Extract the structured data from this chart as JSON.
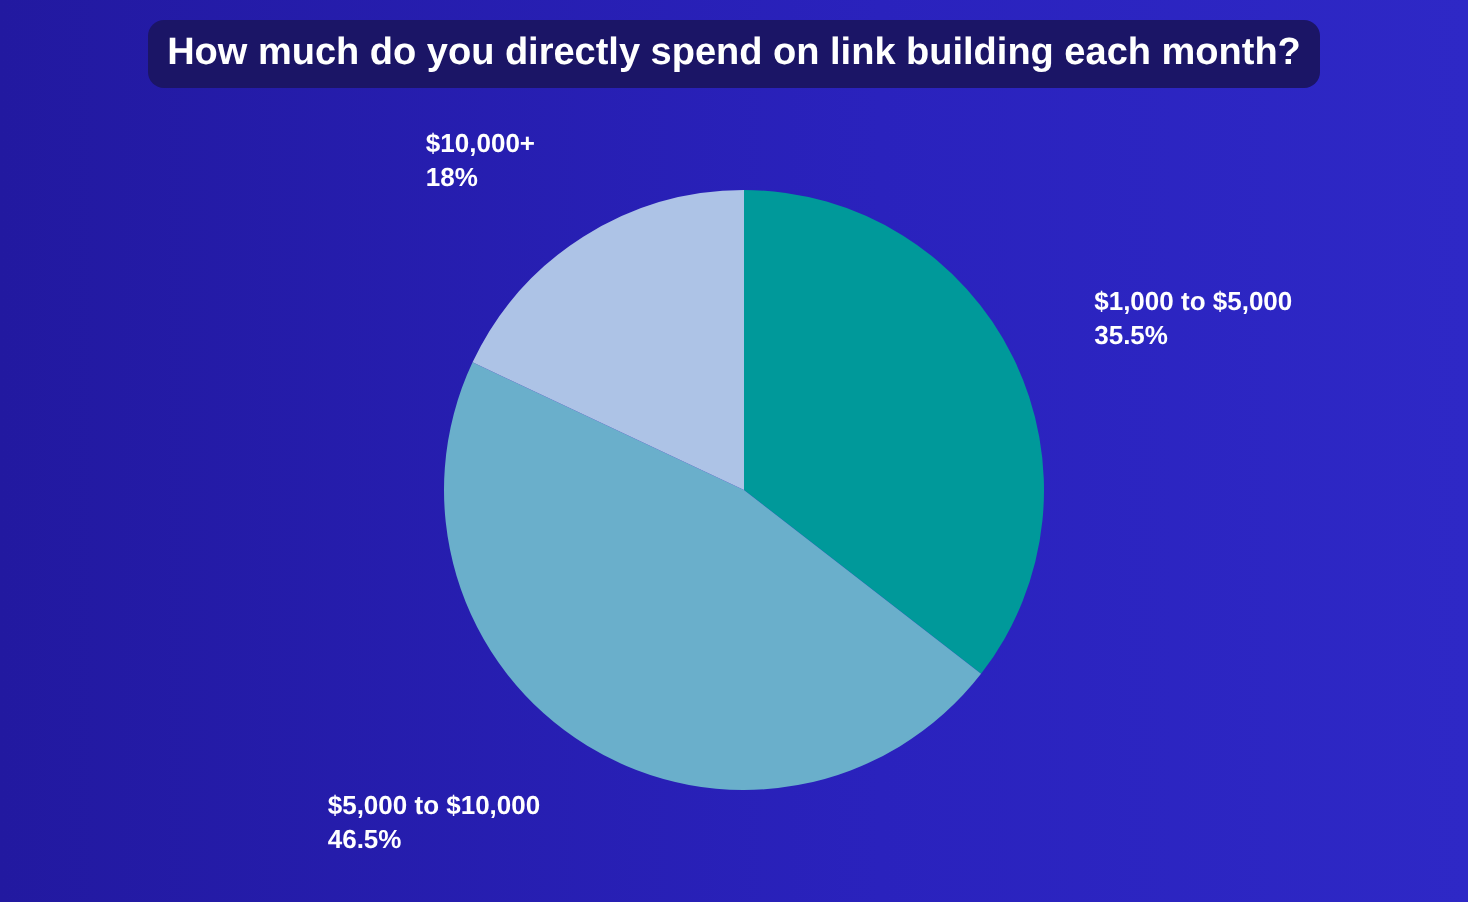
{
  "chart_data": {
    "type": "pie",
    "title": "How much do you directly spend on link building each month?",
    "categories": [
      "$1,000 to $5,000",
      "$5,000 to $10,000",
      "$10,000+"
    ],
    "values": [
      35.5,
      46.5,
      18
    ],
    "value_labels": [
      "35.5%",
      "46.5%",
      "18%"
    ],
    "colors": [
      "#00999a",
      "#6aafcb",
      "#adc3e6"
    ],
    "legend": false
  }
}
